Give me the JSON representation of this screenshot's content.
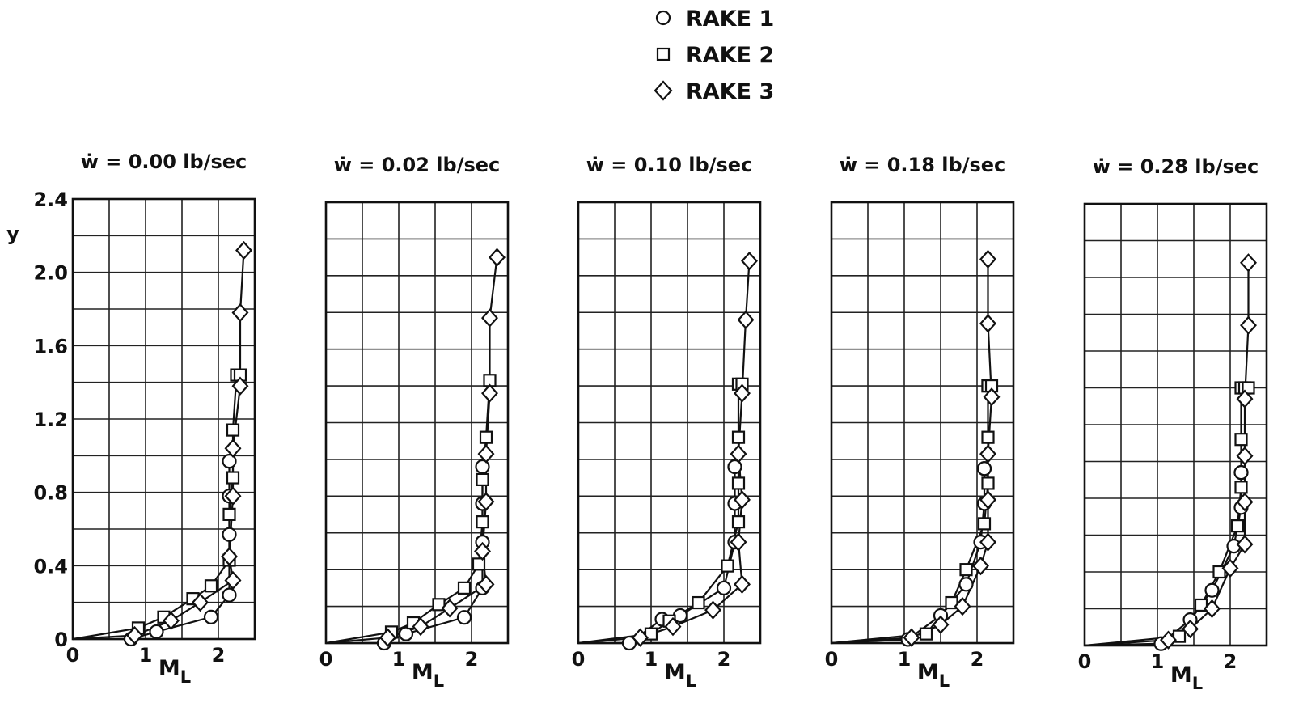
{
  "legend": {
    "items": [
      {
        "marker": "circle",
        "label": "RAKE 1"
      },
      {
        "marker": "square",
        "label": "RAKE 2"
      },
      {
        "marker": "diamond",
        "label": "RAKE 3"
      }
    ]
  },
  "chart_data": [
    {
      "type": "scatter",
      "title": "ẇ = 0.00 lb/sec",
      "xlabel": "M_L",
      "ylabel": "y",
      "xlim": [
        0,
        2.5
      ],
      "ylim": [
        0,
        2.4
      ],
      "xticks": [
        "0",
        "1",
        "2"
      ],
      "yticks": [
        "0",
        "0.4",
        "0.8",
        "1.2",
        "1.6",
        "2.0",
        "2.4"
      ],
      "grid": true,
      "series": [
        {
          "name": "RAKE 1",
          "marker": "circle",
          "x": [
            0.8,
            1.15,
            1.9,
            2.15,
            2.15,
            2.15,
            2.15
          ],
          "y": [
            0.0,
            0.04,
            0.12,
            0.24,
            0.57,
            0.78,
            0.97
          ]
        },
        {
          "name": "RAKE 2",
          "marker": "square",
          "x": [
            0.9,
            1.25,
            1.65,
            1.9,
            2.15,
            2.15,
            2.2,
            2.2,
            2.25,
            2.3
          ],
          "y": [
            0.06,
            0.12,
            0.22,
            0.29,
            0.43,
            0.68,
            0.88,
            1.14,
            1.44,
            1.44
          ]
        },
        {
          "name": "RAKE 3",
          "marker": "diamond",
          "x": [
            0.85,
            1.35,
            1.75,
            2.2,
            2.15,
            2.2,
            2.2,
            2.3,
            2.3,
            2.35
          ],
          "y": [
            0.02,
            0.1,
            0.2,
            0.32,
            0.45,
            0.78,
            1.04,
            1.38,
            1.78,
            2.12
          ]
        }
      ]
    },
    {
      "type": "scatter",
      "title": "ẇ = 0.02 lb/sec",
      "xlabel": "M_L",
      "ylabel": "y",
      "xlim": [
        0,
        2.5
      ],
      "ylim": [
        0,
        2.4
      ],
      "xticks": [
        "0",
        "1",
        "2"
      ],
      "yticks": [
        "0",
        "0.4",
        "0.8",
        "1.2",
        "1.6",
        "2.0",
        "2.4"
      ],
      "grid": true,
      "series": [
        {
          "name": "RAKE 1",
          "marker": "circle",
          "x": [
            0.8,
            1.1,
            1.9,
            2.15,
            2.15,
            2.15,
            2.15
          ],
          "y": [
            0.0,
            0.05,
            0.14,
            0.3,
            0.55,
            0.76,
            0.96
          ]
        },
        {
          "name": "RAKE 2",
          "marker": "square",
          "x": [
            0.9,
            1.2,
            1.55,
            1.9,
            2.1,
            2.15,
            2.15,
            2.2,
            2.25
          ],
          "y": [
            0.06,
            0.11,
            0.21,
            0.3,
            0.43,
            0.66,
            0.89,
            1.12,
            1.43
          ]
        },
        {
          "name": "RAKE 3",
          "marker": "diamond",
          "x": [
            0.85,
            1.3,
            1.7,
            2.2,
            2.15,
            2.2,
            2.2,
            2.25,
            2.25,
            2.35
          ],
          "y": [
            0.03,
            0.09,
            0.19,
            0.32,
            0.5,
            0.77,
            1.03,
            1.36,
            1.77,
            2.1
          ]
        }
      ]
    },
    {
      "type": "scatter",
      "title": "ẇ = 0.10 lb/sec",
      "xlabel": "M_L",
      "ylabel": "y",
      "xlim": [
        0,
        2.5
      ],
      "ylim": [
        0,
        2.4
      ],
      "xticks": [
        "0",
        "1",
        "2"
      ],
      "yticks": [
        "0",
        "0.4",
        "0.8",
        "1.2",
        "1.6",
        "2.0",
        "2.4"
      ],
      "grid": true,
      "series": [
        {
          "name": "RAKE 1",
          "marker": "circle",
          "x": [
            0.7,
            1.15,
            1.4,
            2.0,
            2.15,
            2.15,
            2.15,
            2.15
          ],
          "y": [
            0.0,
            0.13,
            0.15,
            0.3,
            0.55,
            0.76,
            0.96,
            0.96
          ]
        },
        {
          "name": "RAKE 2",
          "marker": "square",
          "x": [
            1.0,
            1.25,
            1.65,
            2.05,
            2.2,
            2.2,
            2.2,
            2.2,
            2.25
          ],
          "y": [
            0.05,
            0.12,
            0.22,
            0.42,
            0.66,
            0.87,
            1.12,
            1.41,
            1.41
          ]
        },
        {
          "name": "RAKE 3",
          "marker": "diamond",
          "x": [
            0.85,
            1.3,
            1.85,
            2.25,
            2.2,
            2.25,
            2.2,
            2.25,
            2.3,
            2.35
          ],
          "y": [
            0.03,
            0.09,
            0.18,
            0.32,
            0.55,
            0.78,
            1.03,
            1.36,
            1.76,
            2.08
          ]
        }
      ]
    },
    {
      "type": "scatter",
      "title": "ẇ = 0.18 lb/sec",
      "xlabel": "M_L",
      "ylabel": "y",
      "xlim": [
        0,
        2.5
      ],
      "ylim": [
        0,
        2.4
      ],
      "xticks": [
        "0",
        "1",
        "2"
      ],
      "yticks": [
        "0",
        "0.4",
        "0.8",
        "1.2",
        "1.6",
        "2.0",
        "2.4"
      ],
      "grid": true,
      "series": [
        {
          "name": "RAKE 1",
          "marker": "circle",
          "x": [
            1.05,
            1.5,
            1.85,
            2.05,
            2.1,
            2.1,
            2.1
          ],
          "y": [
            0.02,
            0.15,
            0.32,
            0.55,
            0.76,
            0.95,
            0.95
          ]
        },
        {
          "name": "RAKE 2",
          "marker": "square",
          "x": [
            1.3,
            1.65,
            1.85,
            2.1,
            2.15,
            2.15,
            2.15,
            2.15,
            2.2
          ],
          "y": [
            0.05,
            0.22,
            0.4,
            0.65,
            0.87,
            1.12,
            1.4,
            1.4,
            1.4
          ]
        },
        {
          "name": "RAKE 3",
          "marker": "diamond",
          "x": [
            1.1,
            1.5,
            1.8,
            2.05,
            2.15,
            2.15,
            2.15,
            2.2,
            2.15,
            2.15
          ],
          "y": [
            0.03,
            0.1,
            0.2,
            0.42,
            0.55,
            0.78,
            1.03,
            1.34,
            1.74,
            2.09
          ]
        }
      ]
    },
    {
      "type": "scatter",
      "title": "ẇ = 0.28 lb/sec",
      "xlabel": "M_L",
      "ylabel": "y",
      "xlim": [
        0,
        2.5
      ],
      "ylim": [
        0,
        2.4
      ],
      "xticks": [
        "0",
        "1",
        "2"
      ],
      "yticks": [
        "0",
        "0.4",
        "0.8",
        "1.2",
        "1.6",
        "2.0",
        "2.4"
      ],
      "grid": true,
      "series": [
        {
          "name": "RAKE 1",
          "marker": "circle",
          "x": [
            1.05,
            1.45,
            1.75,
            2.05,
            2.15,
            2.15,
            2.15
          ],
          "y": [
            0.01,
            0.14,
            0.3,
            0.54,
            0.75,
            0.94,
            0.94
          ]
        },
        {
          "name": "RAKE 2",
          "marker": "square",
          "x": [
            1.3,
            1.6,
            1.85,
            2.1,
            2.15,
            2.15,
            2.15,
            2.2,
            2.25
          ],
          "y": [
            0.05,
            0.22,
            0.4,
            0.65,
            0.86,
            1.12,
            1.4,
            1.4,
            1.4
          ]
        },
        {
          "name": "RAKE 3",
          "marker": "diamond",
          "x": [
            1.15,
            1.45,
            1.75,
            2.0,
            2.2,
            2.2,
            2.2,
            2.2,
            2.25,
            2.25
          ],
          "y": [
            0.03,
            0.09,
            0.2,
            0.42,
            0.55,
            0.78,
            1.03,
            1.34,
            1.74,
            2.08
          ]
        }
      ]
    }
  ]
}
